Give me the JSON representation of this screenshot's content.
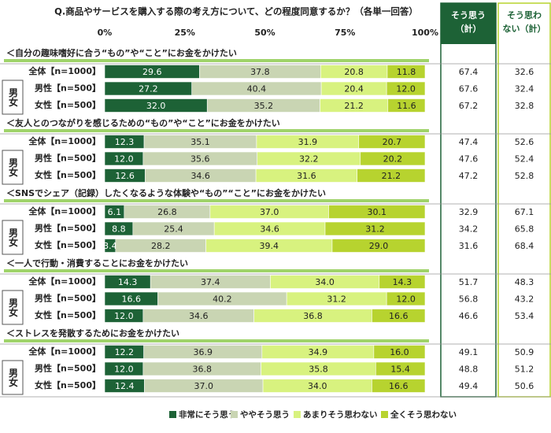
{
  "chart_data": {
    "type": "bar",
    "orientation": "horizontal",
    "stacked": true,
    "title": "Q.商品やサービスを購入する際の考え方について、どの程度同意するか？（各単一回答）",
    "xlim": [
      0,
      100
    ],
    "xticks": [
      {
        "value": 0,
        "label": "0%"
      },
      {
        "value": 25,
        "label": "25%"
      },
      {
        "value": 50,
        "label": "50%"
      },
      {
        "value": 75,
        "label": "75%"
      },
      {
        "value": 100,
        "label": "100%"
      }
    ],
    "total_headers": [
      [
        "そう思う",
        "（計）"
      ],
      [
        "そう思わ",
        "ない（計）"
      ]
    ],
    "gender_label": "男女",
    "series": [
      {
        "name": "非常にそう思う",
        "color": "#1d6236"
      },
      {
        "name": "ややそう思う",
        "color": "#c9d5b3"
      },
      {
        "name": "あまりそう思わない",
        "color": "#d8f27f"
      },
      {
        "name": "全くそう思わない",
        "color": "#b7d32f"
      }
    ],
    "groups": [
      {
        "title": "＜自分の趣味嗜好に合う“もの”や“こと”にお金をかけたい",
        "rows": [
          {
            "label": "全体【n=1000】",
            "values": [
              29.6,
              37.8,
              20.8,
              11.8
            ],
            "value_labels": [
              "29.6",
              "37.8",
              "20.8",
              "11.8"
            ],
            "agree": 67.4,
            "disagree": 32.6
          },
          {
            "label": "男性【n=500】",
            "values": [
              27.2,
              40.4,
              20.4,
              12.0
            ],
            "value_labels": [
              "27.2",
              "40.4",
              "20.4",
              "12.0"
            ],
            "agree": 67.6,
            "disagree": 32.4
          },
          {
            "label": "女性【n=500】",
            "values": [
              32.0,
              35.2,
              21.2,
              11.6
            ],
            "value_labels": [
              "32.0",
              "35.2",
              "21.2",
              "11.6"
            ],
            "agree": 67.2,
            "disagree": 32.8
          }
        ]
      },
      {
        "title": "＜友人とのつながりを感じるための“もの”や“こと”にお金をかけたい",
        "rows": [
          {
            "label": "全体【n=1000】",
            "values": [
              12.3,
              35.1,
              31.9,
              20.7
            ],
            "value_labels": [
              "12.3",
              "35.1",
              "31.9",
              "20.7"
            ],
            "agree": 47.4,
            "disagree": 52.6
          },
          {
            "label": "男性【n=500】",
            "values": [
              12.0,
              35.6,
              32.2,
              20.2
            ],
            "value_labels": [
              "12.0",
              "35.6",
              "32.2",
              "20.2"
            ],
            "agree": 47.6,
            "disagree": 52.4
          },
          {
            "label": "女性【n=500】",
            "values": [
              12.6,
              34.6,
              31.6,
              21.2
            ],
            "value_labels": [
              "12.6",
              "34.6",
              "31.6",
              "21.2"
            ],
            "agree": 47.2,
            "disagree": 52.8
          }
        ]
      },
      {
        "title": "＜SNSでシェア（記録）したくなるような体験や“もの”“こと”にお金をかけたい",
        "rows": [
          {
            "label": "全体【n=1000】",
            "values": [
              6.1,
              26.8,
              37.0,
              30.1
            ],
            "value_labels": [
              "6.1",
              "26.8",
              "37.0",
              "30.1"
            ],
            "agree": 32.9,
            "disagree": 67.1
          },
          {
            "label": "男性【n=500】",
            "values": [
              8.8,
              25.4,
              34.6,
              31.2
            ],
            "value_labels": [
              "8.8",
              "25.4",
              "34.6",
              "31.2"
            ],
            "agree": 34.2,
            "disagree": 65.8
          },
          {
            "label": "女性【n=500】",
            "values": [
              3.4,
              28.2,
              39.4,
              29.0
            ],
            "value_labels": [
              "3.4",
              "28.2",
              "39.4",
              "29.0"
            ],
            "agree": 31.6,
            "disagree": 68.4
          }
        ]
      },
      {
        "title": "＜一人で行動・消費することにお金をかけたい",
        "rows": [
          {
            "label": "全体【n=1000】",
            "values": [
              14.3,
              37.4,
              34.0,
              14.3
            ],
            "value_labels": [
              "14.3",
              "37.4",
              "34.0",
              "14.3"
            ],
            "agree": 51.7,
            "disagree": 48.3
          },
          {
            "label": "男性【n=500】",
            "values": [
              16.6,
              40.2,
              31.2,
              12.0
            ],
            "value_labels": [
              "16.6",
              "40.2",
              "31.2",
              "12.0"
            ],
            "agree": 56.8,
            "disagree": 43.2
          },
          {
            "label": "女性【n=500】",
            "values": [
              12.0,
              34.6,
              36.8,
              16.6
            ],
            "value_labels": [
              "12.0",
              "34.6",
              "36.8",
              "16.6"
            ],
            "agree": 46.6,
            "disagree": 53.4
          }
        ]
      },
      {
        "title": "＜ストレスを発散するためにお金をかけたい",
        "rows": [
          {
            "label": "全体【n=1000】",
            "values": [
              12.2,
              36.9,
              34.9,
              16.0
            ],
            "value_labels": [
              "12.2",
              "36.9",
              "34.9",
              "16.0"
            ],
            "agree": 49.1,
            "disagree": 50.9
          },
          {
            "label": "男性【n=500】",
            "values": [
              12.0,
              36.8,
              35.8,
              15.4
            ],
            "value_labels": [
              "12.0",
              "36.8",
              "35.8",
              "15.4"
            ],
            "agree": 48.8,
            "disagree": 51.2
          },
          {
            "label": "女性【n=500】",
            "values": [
              12.4,
              37.0,
              34.0,
              16.6
            ],
            "value_labels": [
              "12.4",
              "37.0",
              "34.0",
              "16.6"
            ],
            "agree": 49.4,
            "disagree": 50.6
          }
        ]
      }
    ]
  }
}
